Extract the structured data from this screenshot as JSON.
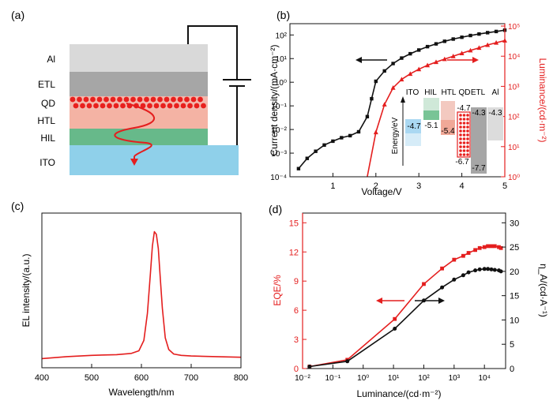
{
  "panel_labels": {
    "a": "(a)",
    "b": "(b)",
    "c": "(c)",
    "d": "(d)"
  },
  "colors": {
    "red": "#e41e1e",
    "black": "#111111",
    "al": "#d9d9d9",
    "etl": "#a6a6a6",
    "qd_bg": "#f2b8ae",
    "qd_dot": "#e8201e",
    "htl": "#f4b3a4",
    "hil": "#67b98a",
    "ito": "#8fd0ea"
  },
  "device": {
    "layers": [
      "Al",
      "ETL",
      "QD",
      "HTL",
      "HIL",
      "ITO"
    ]
  },
  "chart_data": [
    {
      "panel": "b",
      "type": "line",
      "xlabel": "Voltage/V",
      "ylabel_left": "Current density/(mA·cm⁻²)",
      "ylabel_right": "Luminance/(cd·m⁻²)",
      "xlim": [
        0,
        5
      ],
      "xticks": [
        "1",
        "2",
        "3",
        "4",
        "5"
      ],
      "ylim_left": [
        0.0001,
        300
      ],
      "yscale_left": "log",
      "yticks_left": [
        "10⁻⁴",
        "10⁻³",
        "10⁻²",
        "10⁻¹",
        "10⁰",
        "10¹",
        "10²"
      ],
      "ylim_right": [
        1,
        120000
      ],
      "yscale_right": "log",
      "yticks_right": [
        "10⁰",
        "10¹",
        "10²",
        "10³",
        "10⁴",
        "10⁵"
      ],
      "series": [
        {
          "axis": "left",
          "color": "#111111",
          "marker": "square",
          "x": [
            0.2,
            0.4,
            0.6,
            0.8,
            1.0,
            1.2,
            1.4,
            1.6,
            1.8,
            1.9,
            2.0,
            2.2,
            2.4,
            2.6,
            2.8,
            3.0,
            3.2,
            3.4,
            3.6,
            3.8,
            4.0,
            4.2,
            4.4,
            4.6,
            4.8,
            5.0
          ],
          "y": [
            0.00022,
            0.0006,
            0.0012,
            0.0022,
            0.0032,
            0.0045,
            0.0055,
            0.008,
            0.035,
            0.2,
            1.1,
            3.0,
            6.2,
            10.5,
            16,
            23,
            32,
            42,
            54,
            67,
            80,
            95,
            110,
            125,
            140,
            160
          ]
        },
        {
          "axis": "right",
          "color": "#e41e1e",
          "marker": "triangle",
          "x": [
            1.8,
            2.0,
            2.2,
            2.4,
            2.6,
            2.8,
            3.0,
            3.2,
            3.4,
            3.6,
            3.8,
            4.0,
            4.2,
            4.4,
            4.6,
            4.8,
            5.0
          ],
          "y": [
            1,
            30,
            250,
            900,
            1700,
            2600,
            3700,
            5000,
            6400,
            8000,
            10000,
            12500,
            15500,
            19000,
            23500,
            28000,
            33000
          ]
        }
      ],
      "inset": {
        "ylabel": "Energy/eV",
        "columns": [
          "ITO",
          "HIL",
          "HTL",
          "QD",
          "ETL",
          "Al"
        ],
        "levels": [
          "-4.7",
          "-5.1",
          "-5.4",
          "-4.7",
          "-6.7",
          "-4.3",
          "-7.7",
          "-4.3"
        ]
      }
    },
    {
      "panel": "c",
      "type": "line",
      "xlabel": "Wavelength/nm",
      "ylabel": "EL intensity/(a.u.)",
      "xlim": [
        400,
        800
      ],
      "xticks": [
        "400",
        "500",
        "600",
        "700",
        "800"
      ],
      "series": [
        {
          "color": "#e41e1e",
          "x": [
            400,
            450,
            500,
            550,
            580,
            595,
            605,
            612,
            618,
            622,
            626,
            630,
            634,
            638,
            642,
            648,
            655,
            665,
            680,
            700,
            750,
            800
          ],
          "y": [
            0.01,
            0.025,
            0.035,
            0.04,
            0.05,
            0.07,
            0.15,
            0.36,
            0.66,
            0.88,
            0.99,
            0.97,
            0.86,
            0.63,
            0.4,
            0.17,
            0.08,
            0.045,
            0.035,
            0.03,
            0.025,
            0.02
          ]
        }
      ]
    },
    {
      "panel": "d",
      "type": "line",
      "xlabel": "Luminance/(cd·m⁻²)",
      "ylabel_left": "EQE/%",
      "ylabel_right": "η_A/(cd·A⁻¹)",
      "xscale": "log",
      "xlim": [
        0.01,
        50000
      ],
      "xticks": [
        "10⁻²",
        "10⁻¹",
        "10⁰",
        "10¹",
        "10²",
        "10³",
        "10⁴"
      ],
      "ylim_left": [
        0,
        16
      ],
      "yticks_left": [
        "0",
        "3",
        "6",
        "9",
        "12",
        "15"
      ],
      "ylim_right": [
        0,
        32
      ],
      "yticks_right": [
        "0",
        "5",
        "10",
        "15",
        "20",
        "25",
        "30"
      ],
      "series": [
        {
          "axis": "left",
          "color": "#e41e1e",
          "marker": "square",
          "x": [
            0.017,
            0.3,
            11,
            100,
            400,
            1000,
            2000,
            3000,
            5000,
            7000,
            10000,
            13000,
            17000,
            22000,
            30000,
            35000
          ],
          "y": [
            0.2,
            0.9,
            5.1,
            8.7,
            10.3,
            11.2,
            11.6,
            11.9,
            12.2,
            12.4,
            12.5,
            12.6,
            12.6,
            12.6,
            12.5,
            12.4
          ]
        },
        {
          "axis": "right",
          "color": "#111111",
          "marker": "circle",
          "x": [
            0.017,
            0.3,
            11,
            100,
            400,
            1000,
            2000,
            3000,
            5000,
            7000,
            10000,
            13000,
            17000,
            22000,
            30000,
            35000
          ],
          "y": [
            0.4,
            1.5,
            8.2,
            14,
            16.7,
            18.3,
            19.2,
            19.8,
            20.2,
            20.4,
            20.5,
            20.5,
            20.4,
            20.3,
            20.2,
            20.0
          ]
        }
      ]
    }
  ]
}
